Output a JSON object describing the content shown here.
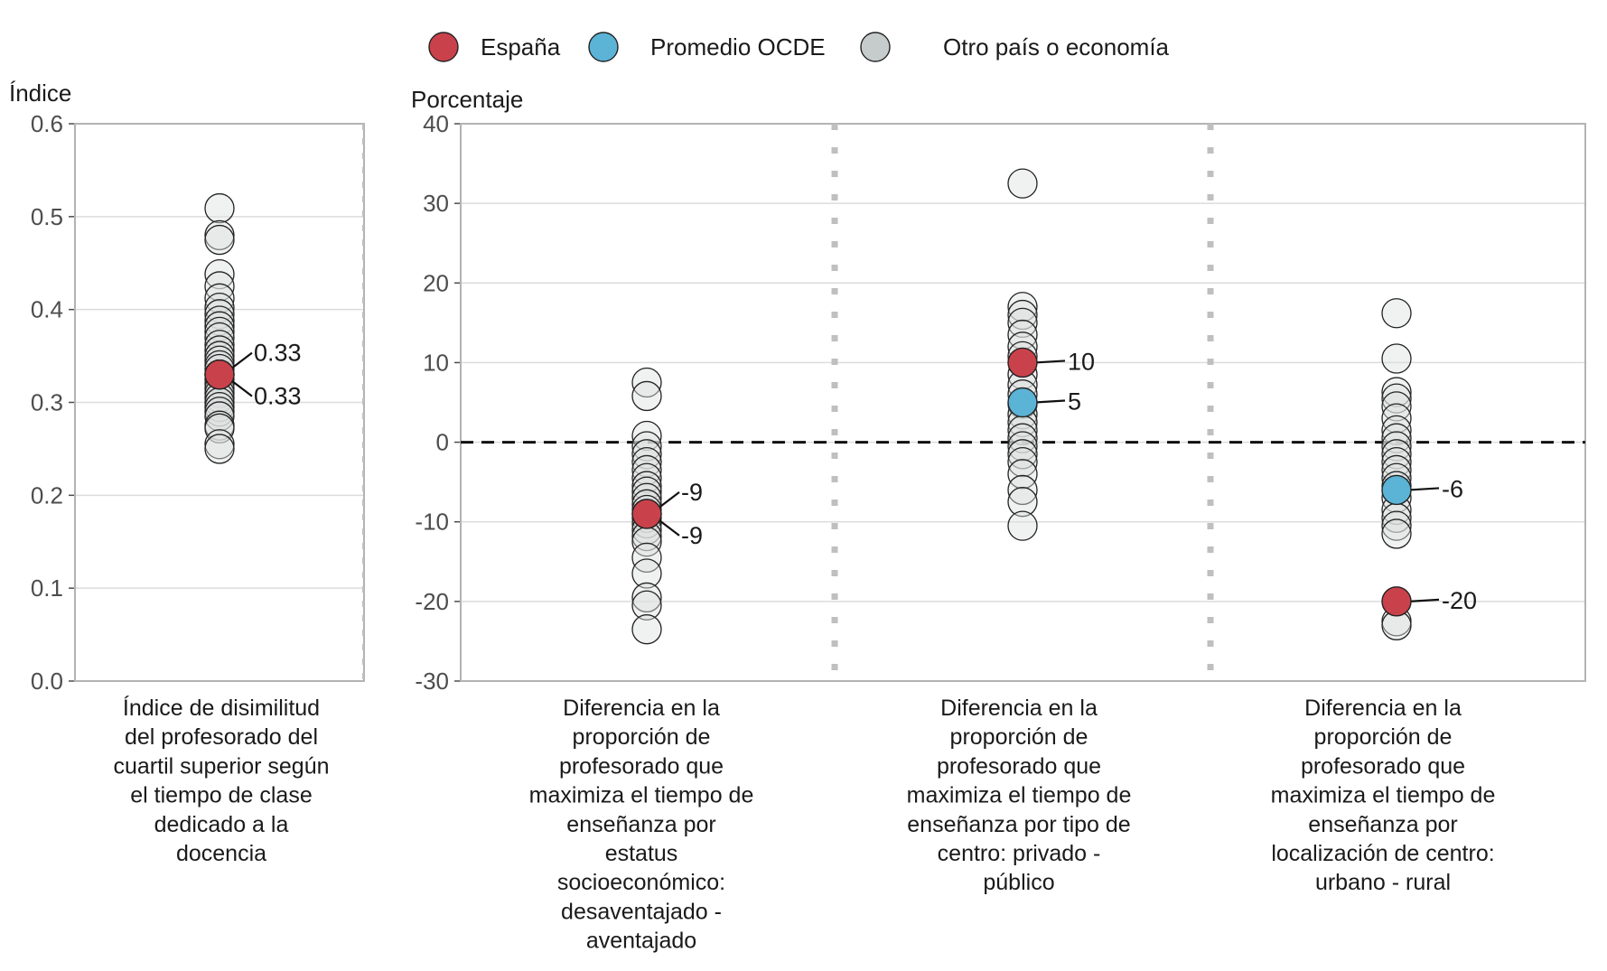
{
  "chart_data": {
    "type": "scatter",
    "legend": {
      "position": "top",
      "entries": [
        {
          "label": "España",
          "color": "#c9424b"
        },
        {
          "label": "Promedio OCDE",
          "color": "#5bb3d6"
        },
        {
          "label": "Otro país o economía",
          "color": "#c6cbcb"
        }
      ]
    },
    "colors": {
      "espana": "#c9424b",
      "ocde": "#5bb3d6",
      "other": "#dde1e1",
      "other_stroke": "#222222",
      "grid": "#dcdcdc",
      "panel_border": "#b3b3b3",
      "separator": "#bfbfbf"
    },
    "panels": [
      {
        "ylabel": "Índice",
        "ylim": [
          0,
          0.6
        ],
        "yticks": [
          0.0,
          0.1,
          0.2,
          0.3,
          0.4,
          0.5,
          0.6
        ],
        "ytick_labels": [
          "0.0",
          "0.1",
          "0.2",
          "0.3",
          "0.4",
          "0.5",
          "0.6"
        ],
        "reference_line": null,
        "categories": [
          {
            "label_lines": [
              "Índice de disimilitud",
              "del profesorado del",
              "cuartil superior según",
              "el tiempo de clase",
              "dedicado a la",
              "docencia"
            ],
            "others": [
              0.509,
              0.48,
              0.475,
              0.438,
              0.425,
              0.412,
              0.402,
              0.395,
              0.388,
              0.382,
              0.376,
              0.37,
              0.362,
              0.356,
              0.35,
              0.345,
              0.34,
              0.336,
              0.33,
              0.325,
              0.32,
              0.315,
              0.31,
              0.305,
              0.3,
              0.295,
              0.29,
              0.285,
              0.275,
              0.272,
              0.255,
              0.25
            ],
            "espana": 0.33,
            "ocde": 0.33,
            "labels": {
              "espana": "0.33",
              "ocde": "0.33"
            }
          }
        ]
      },
      {
        "ylabel": "Porcentaje",
        "ylim": [
          -30,
          40
        ],
        "yticks": [
          -30,
          -20,
          -10,
          0,
          10,
          20,
          30,
          40
        ],
        "ytick_labels": [
          "-30",
          "-20",
          "-10",
          "0",
          "10",
          "20",
          "30",
          "40"
        ],
        "reference_line": 0,
        "categories": [
          {
            "label_lines": [
              "Diferencia en la",
              "proporción de",
              "profesorado que",
              "maximiza el tiempo de",
              "enseñanza por",
              "estatus",
              "socioeconómico:",
              "desaventajado -",
              "aventajado"
            ],
            "others": [
              7.5,
              5.8,
              0.8,
              -0.5,
              -1.5,
              -2.5,
              -3.5,
              -4.5,
              -5.5,
              -6.2,
              -7.0,
              -7.8,
              -8.5,
              -9.5,
              -10.2,
              -11.0,
              -11.8,
              -12.5,
              -14.5,
              -16.5,
              -19.5,
              -20.5,
              -23.5
            ],
            "espana": -9,
            "ocde": -9,
            "labels": {
              "espana": "-9",
              "ocde": "-9"
            }
          },
          {
            "label_lines": [
              "Diferencia en la",
              "proporción de",
              "profesorado que",
              "maximiza el tiempo de",
              "enseñanza por tipo de",
              "centro: privado -",
              "público"
            ],
            "others": [
              32.5,
              17.0,
              16.0,
              15.0,
              13.5,
              12.0,
              10.8,
              8.5,
              7.2,
              6.0,
              4.8,
              3.5,
              2.5,
              1.5,
              0.5,
              -0.5,
              -1.5,
              -2.5,
              -4.0,
              -6.0,
              -7.5,
              -10.5
            ],
            "espana": 10,
            "ocde": 5,
            "labels": {
              "espana": "10",
              "ocde": "5"
            }
          },
          {
            "label_lines": [
              "Diferencia en la",
              "proporción de",
              "profesorado que",
              "maximiza el tiempo de",
              "enseñanza por",
              "localización de centro:",
              "urbano - rural"
            ],
            "others": [
              16.2,
              10.5,
              6.3,
              5.5,
              4.5,
              3.0,
              1.5,
              0.5,
              -0.5,
              -1.5,
              -2.5,
              -3.5,
              -4.5,
              -5.5,
              -7.0,
              -8.5,
              -9.5,
              -10.5,
              -11.5,
              -22.5,
              -23.0
            ],
            "espana": -20,
            "ocde": -6,
            "labels": {
              "espana": "-20",
              "ocde": "-6"
            }
          }
        ]
      }
    ]
  }
}
